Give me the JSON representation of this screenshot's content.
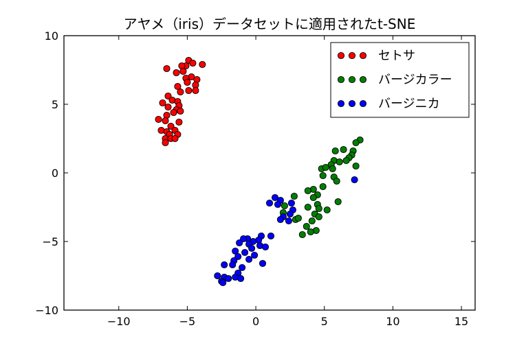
{
  "chart_data": {
    "type": "scatter",
    "title": "アヤメ（iris）データセットに適用されたt-SNE",
    "xlabel": "",
    "ylabel": "",
    "xlim": [
      -14,
      16
    ],
    "ylim": [
      -10,
      10
    ],
    "xticks": [
      -10,
      -5,
      0,
      5,
      10,
      15
    ],
    "yticks": [
      -10,
      -5,
      0,
      5,
      10
    ],
    "xtick_labels": [
      "−10",
      "−5",
      "0",
      "5",
      "10",
      "15"
    ],
    "ytick_labels": [
      "−10",
      "−5",
      "0",
      "5",
      "10"
    ],
    "grid": false,
    "legend_position": "upper right",
    "series": [
      {
        "name": "セトサ",
        "color": "#ff0000",
        "points": [
          [
            -6.5,
            7.6
          ],
          [
            -4.9,
            8.2
          ],
          [
            -4.6,
            8.0
          ],
          [
            -5.1,
            7.8
          ],
          [
            -5.4,
            7.8
          ],
          [
            -3.9,
            7.9
          ],
          [
            -5.8,
            7.3
          ],
          [
            -5.3,
            7.4
          ],
          [
            -4.7,
            7.0
          ],
          [
            -5.1,
            6.9
          ],
          [
            -4.3,
            6.8
          ],
          [
            -5.0,
            6.6
          ],
          [
            -4.4,
            6.4
          ],
          [
            -5.7,
            6.3
          ],
          [
            -4.9,
            6.0
          ],
          [
            -5.5,
            5.9
          ],
          [
            -4.4,
            6.0
          ],
          [
            -6.4,
            5.6
          ],
          [
            -6.1,
            5.3
          ],
          [
            -5.7,
            5.2
          ],
          [
            -6.8,
            5.1
          ],
          [
            -5.6,
            4.9
          ],
          [
            -6.4,
            4.8
          ],
          [
            -5.8,
            4.6
          ],
          [
            -6.0,
            4.4
          ],
          [
            -5.5,
            4.5
          ],
          [
            -6.5,
            4.2
          ],
          [
            -7.1,
            3.9
          ],
          [
            -6.6,
            3.8
          ],
          [
            -5.6,
            3.7
          ],
          [
            -6.2,
            3.4
          ],
          [
            -6.9,
            3.1
          ],
          [
            -6.5,
            3.0
          ],
          [
            -5.9,
            3.1
          ],
          [
            -6.3,
            2.8
          ],
          [
            -5.7,
            2.8
          ],
          [
            -6.6,
            2.5
          ],
          [
            -6.2,
            2.5
          ],
          [
            -5.9,
            2.5
          ],
          [
            -6.6,
            2.2
          ]
        ]
      },
      {
        "name": "バージカラー",
        "color": "#007f00",
        "points": [
          [
            7.6,
            2.4
          ],
          [
            7.3,
            2.2
          ],
          [
            6.4,
            1.7
          ],
          [
            7.1,
            1.6
          ],
          [
            5.8,
            1.6
          ],
          [
            7.0,
            1.3
          ],
          [
            6.8,
            1.1
          ],
          [
            5.7,
            0.9
          ],
          [
            6.1,
            0.8
          ],
          [
            6.6,
            0.9
          ],
          [
            7.3,
            0.5
          ],
          [
            4.8,
            0.3
          ],
          [
            5.1,
            0.4
          ],
          [
            5.5,
            0.6
          ],
          [
            5.6,
            0.3
          ],
          [
            4.9,
            -0.2
          ],
          [
            5.7,
            -0.3
          ],
          [
            5.9,
            -0.6
          ],
          [
            4.9,
            -1.0
          ],
          [
            4.2,
            -1.2
          ],
          [
            3.8,
            -1.3
          ],
          [
            4.5,
            -1.6
          ],
          [
            2.8,
            -1.7
          ],
          [
            4.2,
            -1.8
          ],
          [
            6.0,
            -2.1
          ],
          [
            4.5,
            -2.3
          ],
          [
            2.1,
            -2.4
          ],
          [
            3.8,
            -2.5
          ],
          [
            4.6,
            -2.6
          ],
          [
            5.2,
            -2.7
          ],
          [
            2.0,
            -2.9
          ],
          [
            4.3,
            -3.0
          ],
          [
            4.6,
            -3.2
          ],
          [
            2.9,
            -3.4
          ],
          [
            3.1,
            -3.3
          ],
          [
            4.1,
            -3.5
          ],
          [
            3.7,
            -3.9
          ],
          [
            4.4,
            -4.2
          ],
          [
            3.4,
            -4.5
          ],
          [
            4.0,
            -4.3
          ]
        ]
      },
      {
        "name": "バージニカ",
        "color": "#0000ff",
        "points": [
          [
            7.2,
            -0.5
          ],
          [
            1.4,
            -1.8
          ],
          [
            1.8,
            -2.0
          ],
          [
            1.0,
            -2.2
          ],
          [
            2.6,
            -2.2
          ],
          [
            1.6,
            -2.3
          ],
          [
            2.7,
            -2.7
          ],
          [
            2.5,
            -3.0
          ],
          [
            2.0,
            -3.2
          ],
          [
            1.8,
            -3.4
          ],
          [
            2.4,
            -3.5
          ],
          [
            1.1,
            -4.6
          ],
          [
            0.4,
            -4.6
          ],
          [
            0.2,
            -4.9
          ],
          [
            -0.6,
            -4.8
          ],
          [
            -0.2,
            -5.0
          ],
          [
            -0.9,
            -4.8
          ],
          [
            -1.2,
            -5.1
          ],
          [
            -0.5,
            -5.2
          ],
          [
            0.3,
            -5.3
          ],
          [
            0.7,
            -5.4
          ],
          [
            -0.3,
            -5.5
          ],
          [
            -1.5,
            -5.7
          ],
          [
            -0.8,
            -5.8
          ],
          [
            -0.1,
            -6.0
          ],
          [
            -1.3,
            -6.1
          ],
          [
            -0.5,
            -6.3
          ],
          [
            -1.6,
            -6.4
          ],
          [
            0.5,
            -6.6
          ],
          [
            -1.7,
            -6.7
          ],
          [
            -2.3,
            -6.7
          ],
          [
            -1.0,
            -6.9
          ],
          [
            -1.3,
            -7.3
          ],
          [
            -2.8,
            -7.5
          ],
          [
            -1.5,
            -7.6
          ],
          [
            -2.3,
            -7.6
          ],
          [
            -2.0,
            -7.7
          ],
          [
            -1.1,
            -7.7
          ],
          [
            -2.5,
            -7.9
          ],
          [
            -2.4,
            -8.0
          ]
        ]
      }
    ]
  }
}
